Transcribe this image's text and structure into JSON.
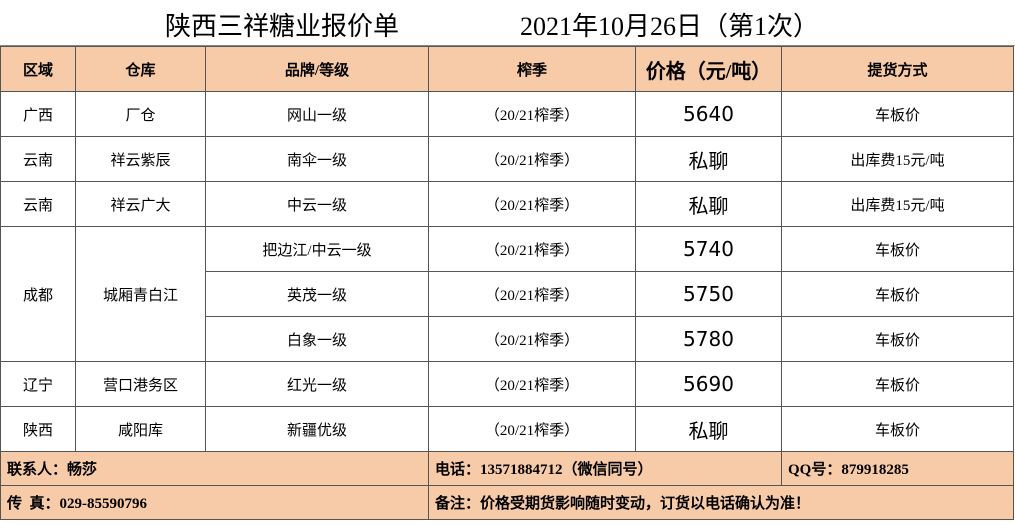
{
  "header": {
    "title": "陕西三祥糖业报价单",
    "date": "2021年10月26日（第1次）"
  },
  "table": {
    "columns": [
      "区域",
      "仓库",
      "品牌/等级",
      "榨季",
      "价格（元/吨）",
      "提货方式"
    ],
    "groups": [
      {
        "region": "广西",
        "warehouse": "厂仓",
        "items": [
          {
            "brand": "网山一级",
            "season": "（20/21榨季）",
            "price": 5640,
            "delivery": "车板价"
          }
        ]
      },
      {
        "region": "云南",
        "warehouse": "祥云紫辰",
        "items": [
          {
            "brand": "南伞一级",
            "season": "（20/21榨季）",
            "price": "私聊",
            "delivery": "出库费15元/吨"
          }
        ]
      },
      {
        "region": "云南",
        "warehouse": "祥云广大",
        "items": [
          {
            "brand": "中云一级",
            "season": "（20/21榨季）",
            "price": "私聊",
            "delivery": "出库费15元/吨"
          }
        ]
      },
      {
        "region": "成都",
        "warehouse": "城厢青白江",
        "items": [
          {
            "brand": "把边江/中云一级",
            "season": "（20/21榨季）",
            "price": 5740,
            "delivery": "车板价"
          },
          {
            "brand": "英茂一级",
            "season": "（20/21榨季）",
            "price": 5750,
            "delivery": "车板价"
          },
          {
            "brand": "白象一级",
            "season": "（20/21榨季）",
            "price": 5780,
            "delivery": "车板价"
          }
        ]
      },
      {
        "region": "辽宁",
        "warehouse": "营口港务区",
        "items": [
          {
            "brand": "红光一级",
            "season": "（20/21榨季）",
            "price": 5690,
            "delivery": "车板价"
          }
        ]
      },
      {
        "region": "陕西",
        "warehouse": "咸阳库",
        "items": [
          {
            "brand": "新疆优级",
            "season": "（20/21榨季）",
            "price": "私聊",
            "delivery": "车板价"
          }
        ]
      }
    ]
  },
  "footer": {
    "contact": "联系人：畅莎",
    "phone": "电话：13571884712（微信同号）",
    "qq": "QQ号：879918285",
    "fax": "传  真：029-85590796",
    "note": "备注：价格受期货影响随时变动，订货以电话确认为准！"
  }
}
